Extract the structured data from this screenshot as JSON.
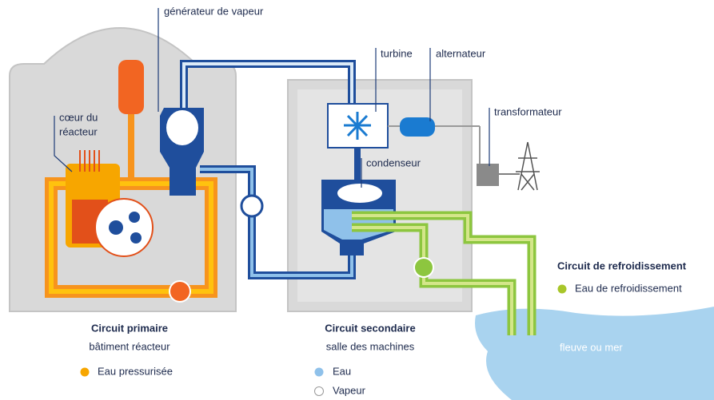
{
  "labels": {
    "steam_generator": "générateur de vapeur",
    "turbine": "turbine",
    "alternator": "alternateur",
    "transformer": "transformateur",
    "core": [
      "cœur du",
      "réacteur"
    ],
    "condenser": "condenseur",
    "water_body": "fleuve ou mer"
  },
  "circuits": [
    {
      "title": "Circuit primaire",
      "subtitle": "bâtiment réacteur",
      "legend": [
        {
          "label": "Eau pressurisée",
          "color": "#f7a600"
        }
      ]
    },
    {
      "title": "Circuit secondaire",
      "subtitle": "salle des machines",
      "legend": [
        {
          "label": "Eau",
          "color": "#8fc1ea"
        },
        {
          "label": "Vapeur",
          "color": "#ffffff"
        }
      ]
    },
    {
      "title": "Circuit de refroidissement",
      "legend": [
        {
          "label": "Eau de refroidissement",
          "color": "#a8c62a"
        }
      ]
    }
  ]
}
